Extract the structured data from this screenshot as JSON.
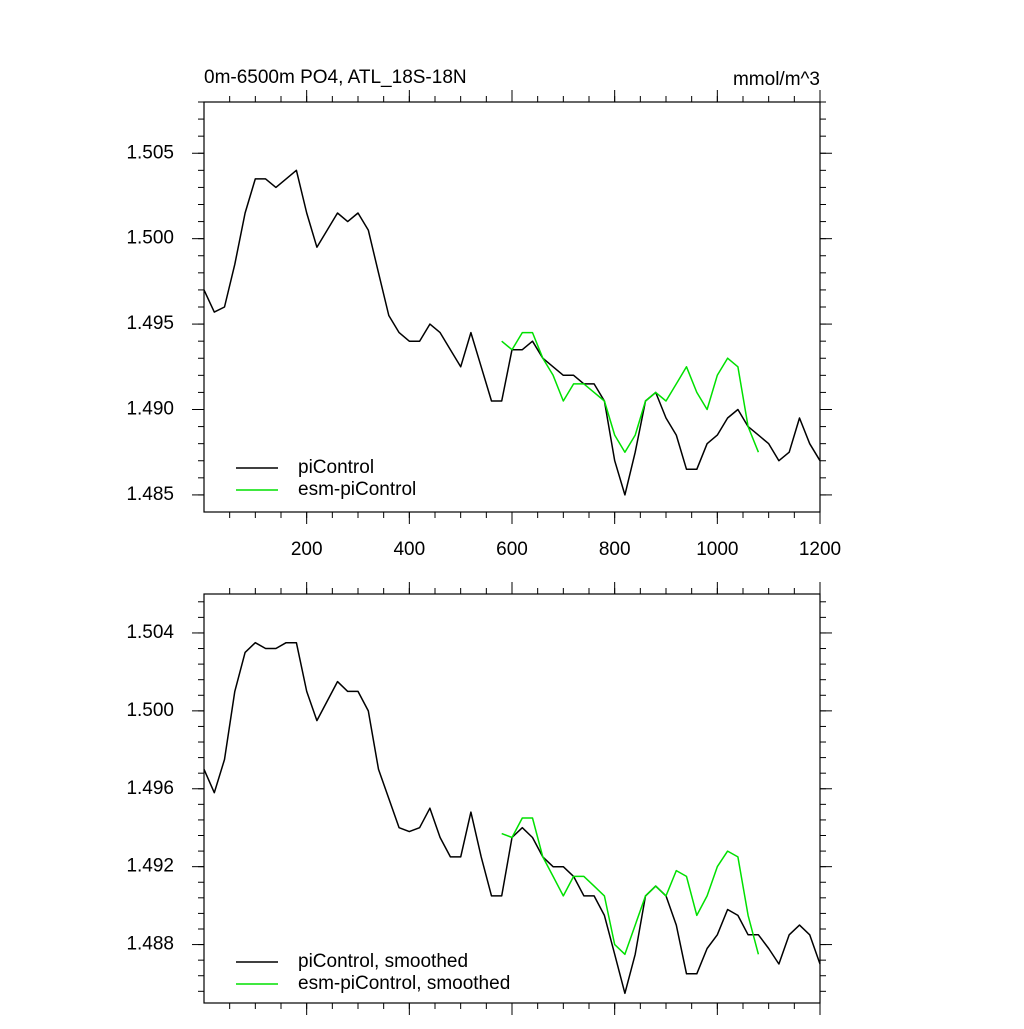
{
  "chart_data": [
    {
      "type": "line",
      "title": "0m-6500m PO4, ATL_18S-18N",
      "units": "mmol/m^3",
      "x": [
        0,
        20,
        40,
        60,
        80,
        100,
        120,
        140,
        160,
        180,
        200,
        220,
        240,
        260,
        280,
        300,
        320,
        340,
        360,
        380,
        400,
        420,
        440,
        460,
        480,
        500,
        520,
        540,
        560,
        580,
        600,
        620,
        640,
        660,
        680,
        700,
        720,
        740,
        760,
        780,
        800,
        820,
        840,
        860,
        880,
        900,
        920,
        940,
        960,
        980,
        1000,
        1020,
        1040,
        1060,
        1080,
        1100,
        1120,
        1140,
        1160,
        1180,
        1200
      ],
      "series": [
        {
          "name": "piControl",
          "color": "#000000",
          "values": [
            1.497,
            1.4957,
            1.496,
            1.4985,
            1.5015,
            1.5035,
            1.5035,
            1.503,
            1.5035,
            1.504,
            1.5015,
            1.4995,
            1.5005,
            1.5015,
            1.501,
            1.5015,
            1.5005,
            1.498,
            1.4955,
            1.4945,
            1.494,
            1.494,
            1.495,
            1.4945,
            1.4935,
            1.4925,
            1.4945,
            1.4925,
            1.4905,
            1.4905,
            1.4935,
            1.4935,
            1.494,
            1.493,
            1.4925,
            1.492,
            1.492,
            1.4915,
            1.4915,
            1.4905,
            1.487,
            1.485,
            1.4875,
            1.4905,
            1.491,
            1.4895,
            1.4885,
            1.4865,
            1.4865,
            1.488,
            1.4885,
            1.4895,
            1.49,
            1.489,
            1.4885,
            1.488,
            1.487,
            1.4875,
            1.4895,
            1.488,
            1.487
          ]
        },
        {
          "name": "esm-piControl",
          "color": "#00e000",
          "values": [
            null,
            null,
            null,
            null,
            null,
            null,
            null,
            null,
            null,
            null,
            null,
            null,
            null,
            null,
            null,
            null,
            null,
            null,
            null,
            null,
            null,
            null,
            null,
            null,
            null,
            null,
            null,
            null,
            null,
            1.494,
            1.4935,
            1.4945,
            1.4945,
            1.493,
            1.492,
            1.4905,
            1.4915,
            1.4915,
            1.491,
            1.4905,
            1.4885,
            1.4875,
            1.4885,
            1.4905,
            1.491,
            1.4905,
            1.4915,
            1.4925,
            1.491,
            1.49,
            1.492,
            1.493,
            1.4925,
            1.489,
            1.4875,
            null,
            null,
            null,
            null,
            null,
            null
          ]
        }
      ],
      "xlim": [
        0,
        1200
      ],
      "xticks": [
        200,
        400,
        600,
        800,
        1000,
        1200
      ],
      "xtick_labels": true,
      "ylim": [
        1.484,
        1.508
      ],
      "yticks": [
        1.505,
        {
          "value": 1.5,
          "label": "1.500"
        },
        1.495,
        {
          "value": 1.49,
          "label": "1.490"
        },
        1.485
      ]
    },
    {
      "type": "line",
      "x": [
        0,
        20,
        40,
        60,
        80,
        100,
        120,
        140,
        160,
        180,
        200,
        220,
        240,
        260,
        280,
        300,
        320,
        340,
        360,
        380,
        400,
        420,
        440,
        460,
        480,
        500,
        520,
        540,
        560,
        580,
        600,
        620,
        640,
        660,
        680,
        700,
        720,
        740,
        760,
        780,
        800,
        820,
        840,
        860,
        880,
        900,
        920,
        940,
        960,
        980,
        1000,
        1020,
        1040,
        1060,
        1080,
        1100,
        1120,
        1140,
        1160,
        1180,
        1200
      ],
      "series": [
        {
          "name": "piControl, smoothed",
          "color": "#000000",
          "values": [
            1.497,
            1.4958,
            1.4975,
            1.501,
            1.503,
            1.5035,
            1.5032,
            1.5032,
            1.5035,
            1.5035,
            1.501,
            1.4995,
            1.5005,
            1.5015,
            1.501,
            1.501,
            1.5,
            1.497,
            1.4955,
            1.494,
            1.4938,
            1.494,
            1.495,
            1.4935,
            1.4925,
            1.4925,
            1.4948,
            1.4925,
            1.4905,
            1.4905,
            1.4935,
            1.494,
            1.4935,
            1.4925,
            1.492,
            1.492,
            1.4915,
            1.4905,
            1.4905,
            1.4895,
            1.4875,
            1.4855,
            1.4875,
            1.4905,
            1.491,
            1.4905,
            1.489,
            1.4865,
            1.4865,
            1.4878,
            1.4885,
            1.4898,
            1.4895,
            1.4885,
            1.4885,
            1.4878,
            1.487,
            1.4885,
            1.489,
            1.4885,
            1.487
          ]
        },
        {
          "name": "esm-piControl, smoothed",
          "color": "#00e000",
          "values": [
            null,
            null,
            null,
            null,
            null,
            null,
            null,
            null,
            null,
            null,
            null,
            null,
            null,
            null,
            null,
            null,
            null,
            null,
            null,
            null,
            null,
            null,
            null,
            null,
            null,
            null,
            null,
            null,
            null,
            1.4937,
            1.4935,
            1.4945,
            1.4945,
            1.4925,
            1.4915,
            1.4905,
            1.4915,
            1.4915,
            1.491,
            1.4905,
            1.488,
            1.4875,
            1.489,
            1.4905,
            1.491,
            1.4905,
            1.4918,
            1.4915,
            1.4895,
            1.4905,
            1.492,
            1.4928,
            1.4925,
            1.4895,
            1.4875,
            null,
            null,
            null,
            null,
            null,
            null
          ]
        }
      ],
      "xlim": [
        0,
        1200
      ],
      "xticks": [
        200,
        400,
        600,
        800,
        1000,
        1200
      ],
      "xtick_labels": false,
      "ylim": [
        1.485,
        1.506
      ],
      "yticks": [
        1.504,
        {
          "value": 1.5,
          "label": "1.500"
        },
        1.496,
        1.492,
        1.488
      ]
    }
  ]
}
